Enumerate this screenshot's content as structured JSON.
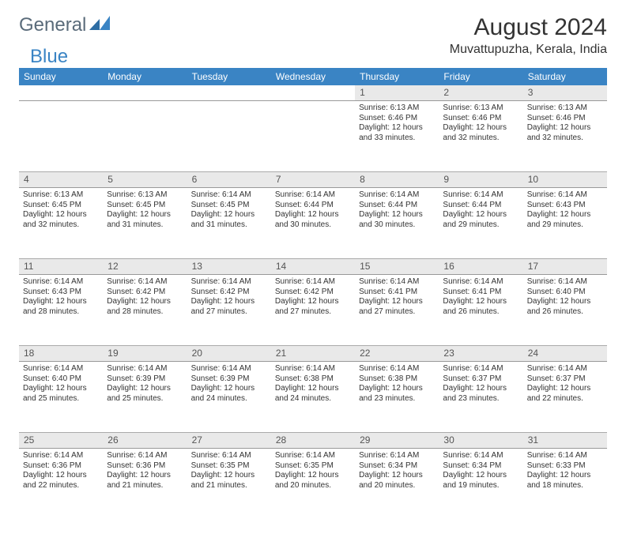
{
  "logo": {
    "text1": "General",
    "text2": "Blue"
  },
  "title": "August 2024",
  "location": "Muvattupuzha, Kerala, India",
  "header_bg": "#3a84c4",
  "daynum_bg": "#e9e9e9",
  "days_of_week": [
    "Sunday",
    "Monday",
    "Tuesday",
    "Wednesday",
    "Thursday",
    "Friday",
    "Saturday"
  ],
  "weeks": [
    [
      null,
      null,
      null,
      null,
      {
        "n": "1",
        "sr": "6:13 AM",
        "ss": "6:46 PM",
        "dl": "12 hours and 33 minutes."
      },
      {
        "n": "2",
        "sr": "6:13 AM",
        "ss": "6:46 PM",
        "dl": "12 hours and 32 minutes."
      },
      {
        "n": "3",
        "sr": "6:13 AM",
        "ss": "6:46 PM",
        "dl": "12 hours and 32 minutes."
      }
    ],
    [
      {
        "n": "4",
        "sr": "6:13 AM",
        "ss": "6:45 PM",
        "dl": "12 hours and 32 minutes."
      },
      {
        "n": "5",
        "sr": "6:13 AM",
        "ss": "6:45 PM",
        "dl": "12 hours and 31 minutes."
      },
      {
        "n": "6",
        "sr": "6:14 AM",
        "ss": "6:45 PM",
        "dl": "12 hours and 31 minutes."
      },
      {
        "n": "7",
        "sr": "6:14 AM",
        "ss": "6:44 PM",
        "dl": "12 hours and 30 minutes."
      },
      {
        "n": "8",
        "sr": "6:14 AM",
        "ss": "6:44 PM",
        "dl": "12 hours and 30 minutes."
      },
      {
        "n": "9",
        "sr": "6:14 AM",
        "ss": "6:44 PM",
        "dl": "12 hours and 29 minutes."
      },
      {
        "n": "10",
        "sr": "6:14 AM",
        "ss": "6:43 PM",
        "dl": "12 hours and 29 minutes."
      }
    ],
    [
      {
        "n": "11",
        "sr": "6:14 AM",
        "ss": "6:43 PM",
        "dl": "12 hours and 28 minutes."
      },
      {
        "n": "12",
        "sr": "6:14 AM",
        "ss": "6:42 PM",
        "dl": "12 hours and 28 minutes."
      },
      {
        "n": "13",
        "sr": "6:14 AM",
        "ss": "6:42 PM",
        "dl": "12 hours and 27 minutes."
      },
      {
        "n": "14",
        "sr": "6:14 AM",
        "ss": "6:42 PM",
        "dl": "12 hours and 27 minutes."
      },
      {
        "n": "15",
        "sr": "6:14 AM",
        "ss": "6:41 PM",
        "dl": "12 hours and 27 minutes."
      },
      {
        "n": "16",
        "sr": "6:14 AM",
        "ss": "6:41 PM",
        "dl": "12 hours and 26 minutes."
      },
      {
        "n": "17",
        "sr": "6:14 AM",
        "ss": "6:40 PM",
        "dl": "12 hours and 26 minutes."
      }
    ],
    [
      {
        "n": "18",
        "sr": "6:14 AM",
        "ss": "6:40 PM",
        "dl": "12 hours and 25 minutes."
      },
      {
        "n": "19",
        "sr": "6:14 AM",
        "ss": "6:39 PM",
        "dl": "12 hours and 25 minutes."
      },
      {
        "n": "20",
        "sr": "6:14 AM",
        "ss": "6:39 PM",
        "dl": "12 hours and 24 minutes."
      },
      {
        "n": "21",
        "sr": "6:14 AM",
        "ss": "6:38 PM",
        "dl": "12 hours and 24 minutes."
      },
      {
        "n": "22",
        "sr": "6:14 AM",
        "ss": "6:38 PM",
        "dl": "12 hours and 23 minutes."
      },
      {
        "n": "23",
        "sr": "6:14 AM",
        "ss": "6:37 PM",
        "dl": "12 hours and 23 minutes."
      },
      {
        "n": "24",
        "sr": "6:14 AM",
        "ss": "6:37 PM",
        "dl": "12 hours and 22 minutes."
      }
    ],
    [
      {
        "n": "25",
        "sr": "6:14 AM",
        "ss": "6:36 PM",
        "dl": "12 hours and 22 minutes."
      },
      {
        "n": "26",
        "sr": "6:14 AM",
        "ss": "6:36 PM",
        "dl": "12 hours and 21 minutes."
      },
      {
        "n": "27",
        "sr": "6:14 AM",
        "ss": "6:35 PM",
        "dl": "12 hours and 21 minutes."
      },
      {
        "n": "28",
        "sr": "6:14 AM",
        "ss": "6:35 PM",
        "dl": "12 hours and 20 minutes."
      },
      {
        "n": "29",
        "sr": "6:14 AM",
        "ss": "6:34 PM",
        "dl": "12 hours and 20 minutes."
      },
      {
        "n": "30",
        "sr": "6:14 AM",
        "ss": "6:34 PM",
        "dl": "12 hours and 19 minutes."
      },
      {
        "n": "31",
        "sr": "6:14 AM",
        "ss": "6:33 PM",
        "dl": "12 hours and 18 minutes."
      }
    ]
  ],
  "labels": {
    "sunrise": "Sunrise:",
    "sunset": "Sunset:",
    "daylight": "Daylight:"
  },
  "style": {
    "font_family": "Arial",
    "title_fontsize": 30,
    "location_fontsize": 16,
    "header_fontsize": 12,
    "daynum_fontsize": 12,
    "detail_fontsize": 10,
    "text_color": "#333333",
    "header_text_color": "#ffffff",
    "border_color": "#999999"
  }
}
